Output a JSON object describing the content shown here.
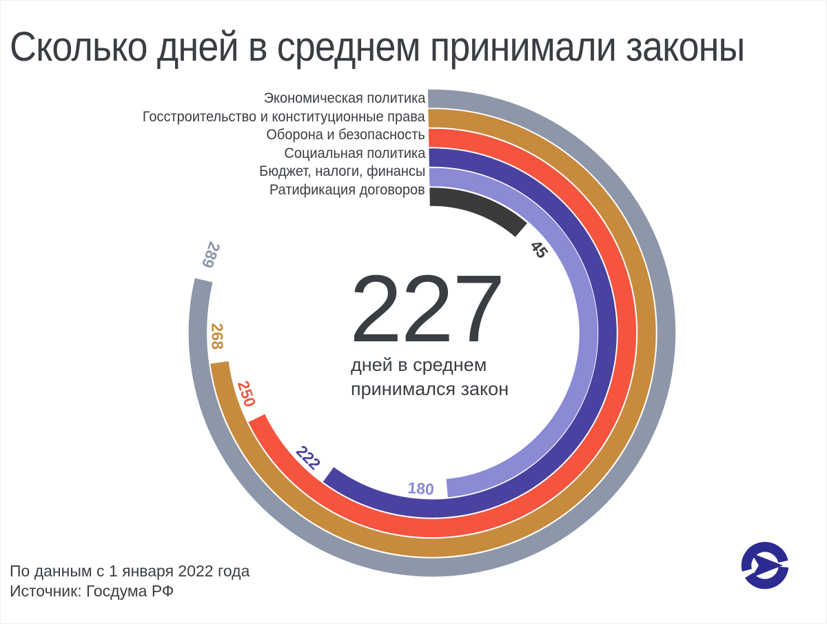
{
  "title": "Сколько дней в среднем принимали законы",
  "chart_data": {
    "type": "radial_bar",
    "direction": "clockwise",
    "start_angle_deg": 0,
    "scale_full_circle_days": 365,
    "categories": [
      "Экономическая политика",
      "Госстроительство и конституционные права",
      "Оборона и безопасность",
      "Социальная политика",
      "Бюджет, налоги, финансы",
      "Ратификация договоров"
    ],
    "values": [
      289,
      268,
      250,
      222,
      180,
      45
    ],
    "colors": [
      "#8d97a9",
      "#c78b3e",
      "#f5543f",
      "#4a42a1",
      "#8a8ad5",
      "#3b3b3c"
    ],
    "center": {
      "value": "227",
      "caption_line1": "дней в среднем",
      "caption_line2": "принимался закон"
    }
  },
  "footer": {
    "line1": "По данным с 1 января 2022 года",
    "line2": "Источник: Госдума РФ"
  },
  "logo": {
    "name": "publisher-logo",
    "color": "#2b2b91"
  },
  "text_color": "#3a3e43"
}
